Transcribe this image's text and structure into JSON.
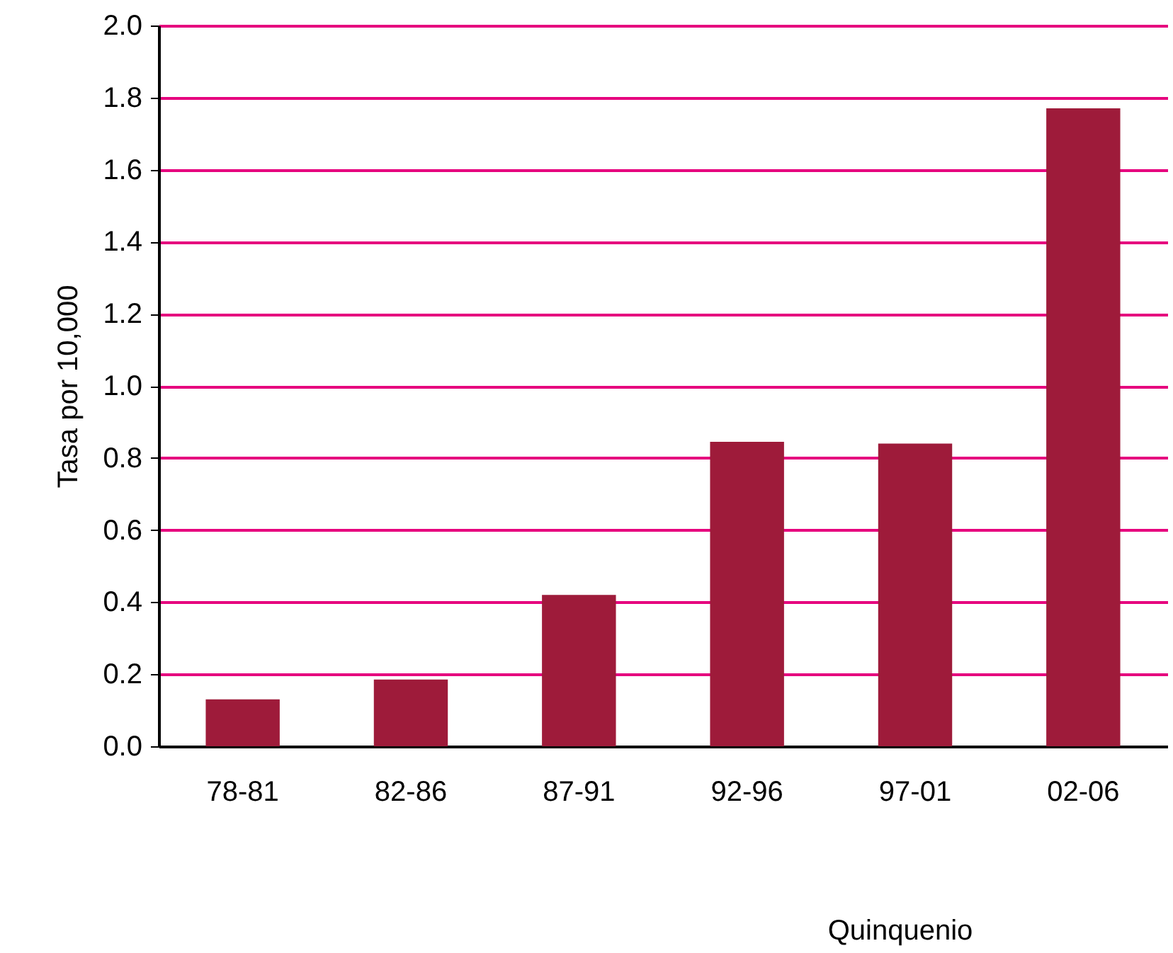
{
  "chart_data": {
    "type": "bar",
    "xlabel": "Quinquenio",
    "ylabel": "Tasa por 10,000",
    "categories": [
      "78-81",
      "82-86",
      "87-91",
      "92-96",
      "97-01",
      "02-06"
    ],
    "values": [
      0.13,
      0.185,
      0.42,
      0.845,
      0.84,
      1.77
    ],
    "color": "#9e1b3a",
    "ylim": [
      0,
      2.0
    ],
    "yticks": [
      {
        "value": 0,
        "label": "0.0"
      },
      {
        "value": 0.2,
        "label": "0.2"
      },
      {
        "value": 0.4,
        "label": "0.4"
      },
      {
        "value": 0.6,
        "label": "0.6"
      },
      {
        "value": 0.8,
        "label": "0.8"
      },
      {
        "value": 1.0,
        "label": "1.0"
      },
      {
        "value": 1.2,
        "label": "1.2"
      },
      {
        "value": 1.4,
        "label": "1.4"
      },
      {
        "value": 1.6,
        "label": "1.6"
      },
      {
        "value": 1.8,
        "label": "1.8"
      },
      {
        "value": 2.0,
        "label": "2.0"
      }
    ],
    "grid": "y"
  }
}
